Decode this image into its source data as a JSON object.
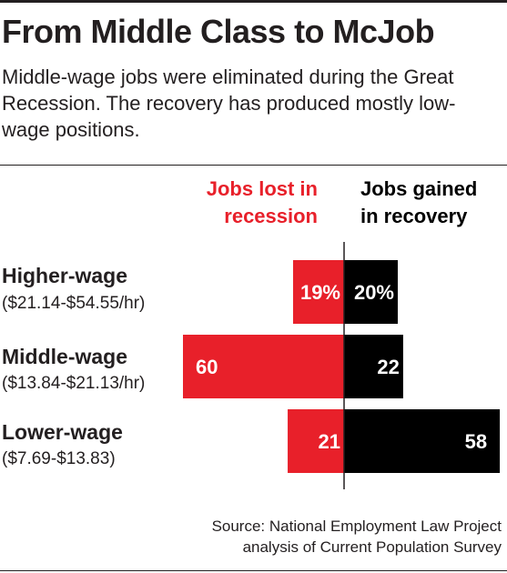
{
  "title": "From Middle Class to McJob",
  "subtitle": "Middle-wage jobs were eliminated during the Great Recession. The recovery has produced mostly low-wage positions.",
  "source": {
    "line1": "Source: National Employment Law Project",
    "line2": "analysis of Current Population Survey"
  },
  "colors": {
    "lost": "#e8202a",
    "gained": "#000000",
    "text": "#231f20"
  },
  "chart_data": {
    "type": "bar",
    "orientation": "diverging-horizontal",
    "unit": "percent",
    "categories": [
      "Higher-wage",
      "Middle-wage",
      "Lower-wage"
    ],
    "category_ranges": [
      "($21.14-$54.55/hr)",
      "($13.84-$21.13/hr)",
      "($7.69-$13.83)"
    ],
    "series": [
      {
        "name": "Jobs lost in recession",
        "header_lines": [
          "Jobs lost in",
          "recession"
        ],
        "values": [
          19,
          60,
          21
        ],
        "labels": [
          "19%",
          "60",
          "21"
        ]
      },
      {
        "name": "Jobs gained in recovery",
        "header_lines": [
          "Jobs gained",
          "in recovery"
        ],
        "values": [
          20,
          22,
          58
        ],
        "labels": [
          "20%",
          "22",
          "58"
        ]
      }
    ],
    "xlim": [
      -60,
      58
    ]
  }
}
